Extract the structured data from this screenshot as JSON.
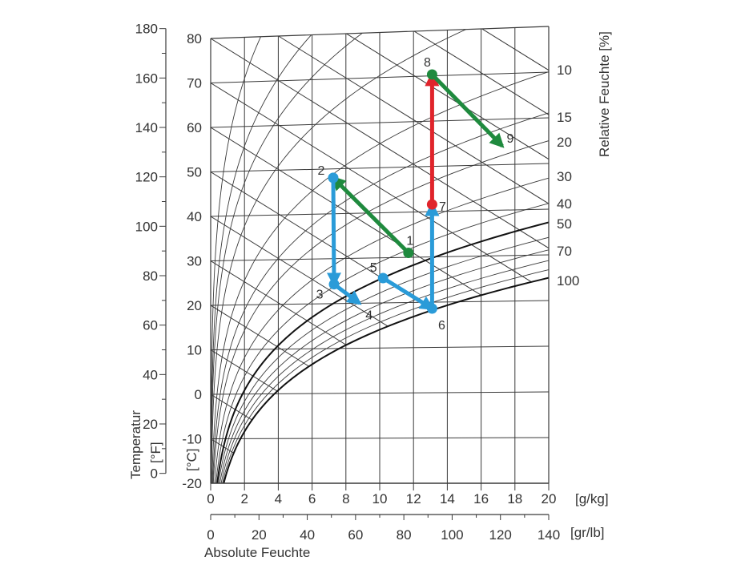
{
  "chart_data": {
    "type": "line",
    "subtype": "psychrometric (Mollier h-x) chart",
    "xlabel": "Absolute Feuchte",
    "x_unit_primary": "[g/kg]",
    "x_unit_secondary": "[gr/lb]",
    "ylabel": "Temperatur",
    "y_unit_celsius": "[°C]",
    "y_unit_fahrenheit": "[°F]",
    "right_label": "Relative Feuchte [%]",
    "xlim": [
      0,
      20
    ],
    "ylim": [
      -20,
      80
    ],
    "x_ticks_gkg": [
      "0",
      "2",
      "4",
      "6",
      "8",
      "10",
      "12",
      "14",
      "16",
      "18",
      "20"
    ],
    "x_ticks_grlb": [
      "0",
      "20",
      "40",
      "60",
      "80",
      "100",
      "120",
      "140"
    ],
    "y_ticks_c": [
      "-20",
      "-10",
      "0",
      "10",
      "20",
      "30",
      "40",
      "50",
      "60",
      "70",
      "80"
    ],
    "y_ticks_f": [
      "0",
      "20",
      "40",
      "60",
      "80",
      "100",
      "120",
      "140",
      "160",
      "180"
    ],
    "rh_labels": [
      "10",
      "15",
      "20",
      "30",
      "40",
      "50",
      "70",
      "100"
    ],
    "rh_curves_percent": [
      1,
      2,
      3,
      5,
      10,
      15,
      20,
      30,
      40,
      50,
      60,
      70,
      80,
      90,
      100
    ],
    "rh_bold_percent": [
      50,
      100
    ],
    "grid": true,
    "points": [
      {
        "label": "1",
        "x": 11.7,
        "t": 31
      },
      {
        "label": "2",
        "x": 7.25,
        "t": 48
      },
      {
        "label": "3",
        "x": 7.3,
        "t": 24.3
      },
      {
        "label": "4",
        "x": 8.8,
        "t": 20
      },
      {
        "label": "5",
        "x": 10.2,
        "t": 25.5
      },
      {
        "label": "6",
        "x": 13.1,
        "t": 18.6
      },
      {
        "label": "7",
        "x": 13.1,
        "t": 41.6
      },
      {
        "label": "8",
        "x": 13.1,
        "t": 70.3
      },
      {
        "label": "9",
        "x": 17.25,
        "t": 54.1
      }
    ],
    "processes": [
      {
        "from": "1",
        "to": "2",
        "color": "#1f8a3e"
      },
      {
        "from": "2",
        "to": "3",
        "color": "#2a9bd8"
      },
      {
        "from": "3",
        "to": "4",
        "color": "#2a9bd8"
      },
      {
        "from": "5",
        "to": "6",
        "color": "#2a9bd8"
      },
      {
        "from": "6",
        "to": "7",
        "color": "#2a9bd8"
      },
      {
        "from": "7",
        "to": "8",
        "color": "#e0242b"
      },
      {
        "from": "8",
        "to": "9",
        "color": "#1f8a3e"
      }
    ],
    "colors": {
      "grid": "#3a3a3a",
      "text": "#333333",
      "green": "#1f8a3e",
      "blue": "#2a9bd8",
      "red": "#e0242b"
    }
  }
}
